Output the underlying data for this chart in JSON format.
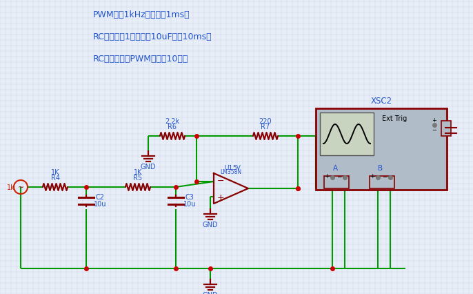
{
  "bg_color": "#e8eef8",
  "grid_color": "#c8d4e8",
  "blue": "#2255cc",
  "dark_red": "#880000",
  "red": "#cc2200",
  "green": "#009900",
  "dot_red": "#cc0000",
  "text_lines": [
    "PWM频率1kHz，即周期1ms。",
    "RC时间常数1千欧乘以10uF等于10ms。",
    "RC时间常数是PWM周期的10倍。"
  ],
  "figsize": [
    6.86,
    4.27
  ],
  "dpi": 100
}
